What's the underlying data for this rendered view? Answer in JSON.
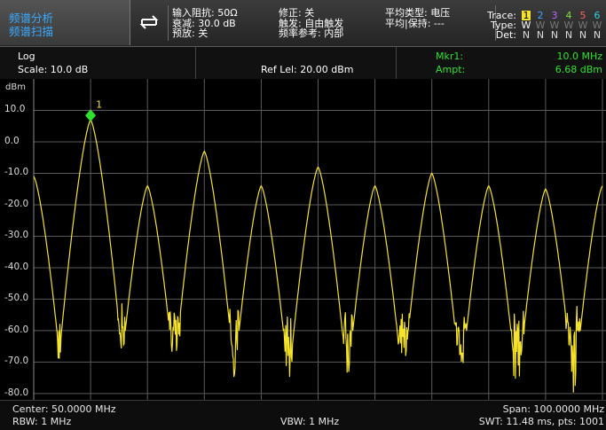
{
  "header": {
    "mode_line1": "频谱分析",
    "mode_line2": "频谱扫描",
    "input": [
      "输入阻抗: 50Ω",
      "衰减: 30.0 dB",
      "预放: 关"
    ],
    "trigger": [
      "修正: 关",
      "触发: 自由触发",
      "频率参考: 内部"
    ],
    "average": [
      "平均类型: 电压",
      "平均|保持: ---"
    ],
    "trace": {
      "labels": [
        "Trace:",
        "Type:",
        "Det:"
      ],
      "numbers": [
        "1",
        "2",
        "3",
        "4",
        "5",
        "6"
      ],
      "number_colors": [
        "#f5e22a",
        "#4a9cff",
        "#c060ff",
        "#7fe040",
        "#ff6060",
        "#2fd0e0"
      ],
      "types": [
        "W",
        "W",
        "W",
        "W",
        "W",
        "W"
      ],
      "dets": [
        "N",
        "N",
        "N",
        "N",
        "N",
        "N"
      ]
    }
  },
  "info": {
    "scale_type": "Log",
    "scale": "Scale: 10.0 dB",
    "ref_level": "Ref Lel: 20.00 dBm",
    "marker_name": "Mkr1:",
    "marker_freq": "10.0 MHz",
    "ampt_label": "Ampt:",
    "ampt_value": "6.68 dBm"
  },
  "chart_data": {
    "type": "line",
    "y_unit": "dBm",
    "y_ticks": [
      "10.0",
      "0.0",
      "-10.0",
      "-20.0",
      "-30.0",
      "-40.0",
      "-50.0",
      "-60.0",
      "-70.0",
      "-80.0"
    ],
    "ylim": [
      -82,
      20
    ],
    "xlim_mhz": [
      0,
      100
    ],
    "grid": true,
    "series": [
      {
        "color": "#f5e22a",
        "peaks": [
          {
            "x_mhz": 0,
            "y_dbm": -11
          },
          {
            "x_mhz": 10,
            "y_dbm": 7
          },
          {
            "x_mhz": 20,
            "y_dbm": -14
          },
          {
            "x_mhz": 30,
            "y_dbm": -3
          },
          {
            "x_mhz": 40,
            "y_dbm": -14
          },
          {
            "x_mhz": 50,
            "y_dbm": -8
          },
          {
            "x_mhz": 60,
            "y_dbm": -14
          },
          {
            "x_mhz": 70,
            "y_dbm": -10
          },
          {
            "x_mhz": 80,
            "y_dbm": -14
          },
          {
            "x_mhz": 90,
            "y_dbm": -15
          },
          {
            "x_mhz": 100,
            "y_dbm": -14
          }
        ],
        "noise_floor_dbm": [
          -80,
          -55
        ]
      }
    ],
    "marker": {
      "label": "1",
      "x_mhz": 10,
      "y_dbm": 6.68,
      "color": "#2fe02f"
    }
  },
  "footer": {
    "center": "Center: 50.0000 MHz",
    "rbw": "RBW: 1 MHz",
    "vbw": "VBW: 1 MHz",
    "span": "Span: 100.0000 MHz",
    "swt": "SWT: 11.48 ms, pts: 1001"
  }
}
